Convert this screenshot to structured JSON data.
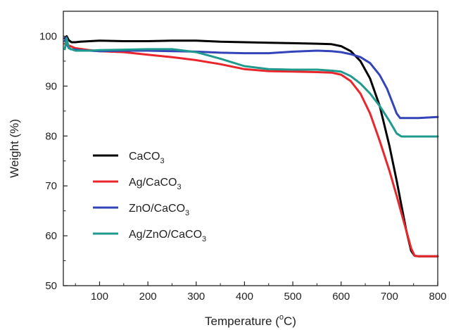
{
  "chart_data": {
    "type": "line",
    "title": "",
    "xlabel": {
      "prefix": "Temperature (",
      "superscript": "o",
      "suffix": "C)"
    },
    "ylabel": "Weight (%)",
    "xlim": [
      25,
      800
    ],
    "ylim": [
      50,
      105
    ],
    "xticks": [
      100,
      200,
      300,
      400,
      500,
      600,
      700,
      800
    ],
    "yticks": [
      50,
      60,
      70,
      80,
      90,
      100
    ],
    "grid": false,
    "legend_position": "lower-left",
    "series": [
      {
        "name": "CaCO3",
        "label_main": "CaCO",
        "label_sub": "3",
        "color": "#000000",
        "points": [
          [
            28,
            99.6
          ],
          [
            32,
            100
          ],
          [
            36,
            99.2
          ],
          [
            42,
            98.8
          ],
          [
            50,
            98.8
          ],
          [
            60,
            98.9
          ],
          [
            80,
            99.0
          ],
          [
            100,
            99.1
          ],
          [
            150,
            99.0
          ],
          [
            200,
            99.0
          ],
          [
            250,
            99.1
          ],
          [
            300,
            99.1
          ],
          [
            350,
            98.9
          ],
          [
            400,
            98.8
          ],
          [
            450,
            98.7
          ],
          [
            500,
            98.6
          ],
          [
            550,
            98.5
          ],
          [
            580,
            98.4
          ],
          [
            600,
            98.0
          ],
          [
            620,
            97.0
          ],
          [
            640,
            95.0
          ],
          [
            660,
            91.5
          ],
          [
            680,
            86.0
          ],
          [
            700,
            78.0
          ],
          [
            715,
            71.0
          ],
          [
            725,
            66.0
          ],
          [
            735,
            61.0
          ],
          [
            745,
            57.0
          ],
          [
            752,
            56.0
          ],
          [
            760,
            55.9
          ],
          [
            780,
            55.9
          ],
          [
            800,
            55.9
          ]
        ]
      },
      {
        "name": "Ag/CaCO3",
        "label_main": "Ag/CaCO",
        "label_sub": "3",
        "color": "#e8262b",
        "points": [
          [
            28,
            98.5
          ],
          [
            35,
            98.2
          ],
          [
            50,
            97.6
          ],
          [
            80,
            97.2
          ],
          [
            100,
            97.0
          ],
          [
            150,
            96.8
          ],
          [
            200,
            96.3
          ],
          [
            250,
            95.8
          ],
          [
            300,
            95.2
          ],
          [
            350,
            94.4
          ],
          [
            400,
            93.4
          ],
          [
            450,
            93.0
          ],
          [
            500,
            92.9
          ],
          [
            550,
            92.8
          ],
          [
            580,
            92.7
          ],
          [
            600,
            92.3
          ],
          [
            620,
            91.0
          ],
          [
            640,
            88.5
          ],
          [
            660,
            84.5
          ],
          [
            680,
            79.0
          ],
          [
            700,
            73.0
          ],
          [
            715,
            68.0
          ],
          [
            725,
            64.5
          ],
          [
            735,
            61.0
          ],
          [
            745,
            57.5
          ],
          [
            752,
            56.0
          ],
          [
            760,
            55.9
          ],
          [
            780,
            55.9
          ],
          [
            800,
            55.9
          ]
        ]
      },
      {
        "name": "ZnO/CaCO3",
        "label_main": "ZnO/CaCO",
        "label_sub": "3",
        "color": "#3344b8",
        "points": [
          [
            28,
            99.0
          ],
          [
            31,
            99.8
          ],
          [
            34,
            98.0
          ],
          [
            40,
            97.4
          ],
          [
            60,
            97.2
          ],
          [
            100,
            97.0
          ],
          [
            150,
            97.1
          ],
          [
            200,
            97.1
          ],
          [
            250,
            97.0
          ],
          [
            300,
            96.9
          ],
          [
            350,
            96.7
          ],
          [
            400,
            96.6
          ],
          [
            450,
            96.6
          ],
          [
            500,
            96.9
          ],
          [
            550,
            97.1
          ],
          [
            580,
            97.0
          ],
          [
            600,
            96.8
          ],
          [
            620,
            96.4
          ],
          [
            640,
            95.8
          ],
          [
            660,
            94.6
          ],
          [
            680,
            92.2
          ],
          [
            695,
            89.5
          ],
          [
            705,
            87.0
          ],
          [
            715,
            84.5
          ],
          [
            722,
            83.6
          ],
          [
            735,
            83.6
          ],
          [
            760,
            83.6
          ],
          [
            800,
            83.8
          ]
        ]
      },
      {
        "name": "Ag/ZnO/CaCO3",
        "label_main": "Ag/ZnO/CaCO",
        "label_sub": "3",
        "color": "#1f9a8e",
        "points": [
          [
            28,
            97.4
          ],
          [
            32,
            99.6
          ],
          [
            36,
            97.6
          ],
          [
            50,
            97.1
          ],
          [
            80,
            97.1
          ],
          [
            100,
            97.2
          ],
          [
            150,
            97.3
          ],
          [
            200,
            97.4
          ],
          [
            250,
            97.4
          ],
          [
            300,
            96.8
          ],
          [
            350,
            95.5
          ],
          [
            400,
            94.0
          ],
          [
            450,
            93.4
          ],
          [
            500,
            93.3
          ],
          [
            550,
            93.3
          ],
          [
            580,
            93.1
          ],
          [
            600,
            92.9
          ],
          [
            620,
            92.0
          ],
          [
            640,
            90.5
          ],
          [
            660,
            88.5
          ],
          [
            680,
            86.0
          ],
          [
            700,
            83.0
          ],
          [
            715,
            80.5
          ],
          [
            725,
            79.9
          ],
          [
            750,
            79.9
          ],
          [
            800,
            79.9
          ]
        ]
      }
    ]
  }
}
